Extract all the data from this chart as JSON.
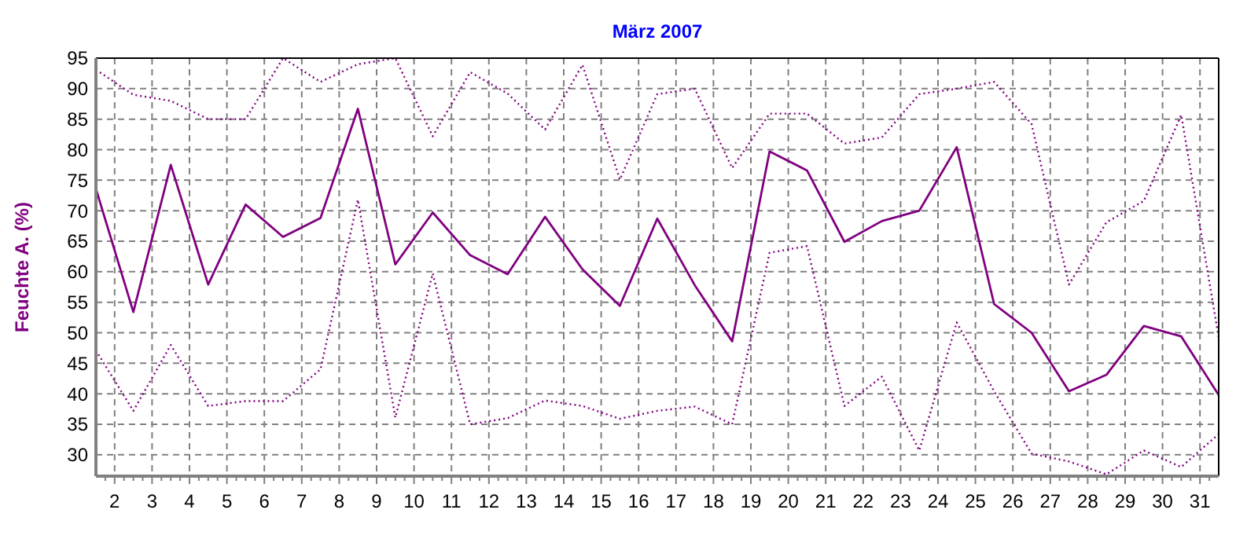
{
  "chart_data": {
    "type": "line",
    "title": "März 2007",
    "ylabel": "Feuchte A. (%)",
    "x": [
      1.5,
      2.5,
      3.5,
      4.5,
      5.5,
      6.5,
      7.5,
      8.5,
      9.5,
      10.5,
      11.5,
      12.5,
      13.5,
      14.5,
      15.5,
      16.5,
      17.5,
      18.5,
      19.5,
      20.5,
      21.5,
      22.5,
      23.5,
      24.5,
      25.5,
      26.5,
      27.5,
      28.5,
      29.5,
      30.5,
      31.5
    ],
    "series": [
      {
        "color": "#800080",
        "line_style": "dotted",
        "values": [
          93.1,
          89,
          88,
          85,
          85,
          95,
          91.1,
          94,
          95,
          82.2,
          92.7,
          89.2,
          83.3,
          93.9,
          75.1,
          89.1,
          90,
          77,
          85.9,
          85.9,
          81,
          82,
          89.1,
          90,
          91.1,
          84.2,
          57.9,
          68.1,
          71.6,
          85.7,
          49.2
        ]
      },
      {
        "color": "#800080",
        "line_style": "solid",
        "values": [
          73.6,
          53.4,
          77.5,
          57.9,
          71,
          65.7,
          68.8,
          86.7,
          61.2,
          69.7,
          62.7,
          59.6,
          69,
          60.4,
          54.4,
          68.7,
          57.8,
          48.6,
          79.7,
          76.6,
          64.9,
          68.3,
          70,
          80.4,
          54.7,
          50,
          40.4,
          43.1,
          51.1,
          49.4,
          39.8
        ]
      },
      {
        "color": "#800080",
        "line_style": "dotted",
        "values": [
          47.1,
          37.2,
          48,
          38,
          38.8,
          38.8,
          44,
          71.8,
          36.1,
          59.7,
          35,
          36,
          38.9,
          38,
          35.9,
          37.2,
          37.9,
          35,
          63.1,
          64.2,
          38,
          42.8,
          30.7,
          51.7,
          40.4,
          30.2,
          28.9,
          26.8,
          30.7,
          28,
          33.4
        ]
      }
    ],
    "xlim": [
      1.5,
      31.5
    ],
    "xticks": [
      2,
      3,
      4,
      5,
      6,
      7,
      8,
      9,
      10,
      11,
      12,
      13,
      14,
      15,
      16,
      17,
      18,
      19,
      20,
      21,
      22,
      23,
      24,
      25,
      26,
      27,
      28,
      29,
      30,
      31
    ],
    "ylim": [
      26.5,
      95
    ],
    "yticks": [
      30,
      35,
      40,
      45,
      50,
      55,
      60,
      65,
      70,
      75,
      80,
      85,
      90,
      95
    ],
    "grid": true,
    "marker": "none"
  }
}
